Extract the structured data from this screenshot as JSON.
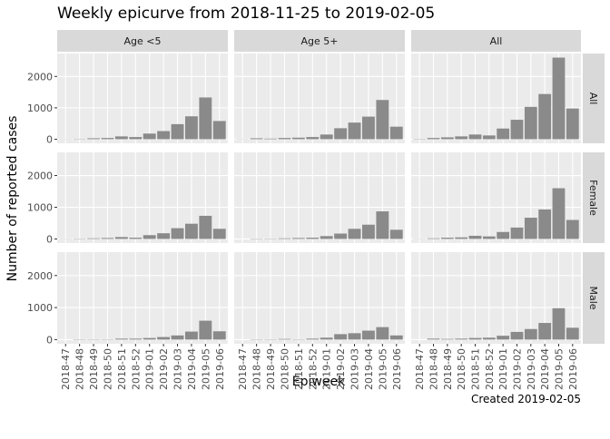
{
  "chart_data": {
    "type": "bar",
    "title": "Weekly epicurve from 2018-11-25 to 2019-02-05",
    "xlabel": "Epiweek",
    "ylabel": "Number of reported cases",
    "caption": "Created 2019-02-05",
    "categories": [
      "2018-47",
      "2018-48",
      "2018-49",
      "2018-50",
      "2018-51",
      "2018-52",
      "2019-01",
      "2019-02",
      "2019-03",
      "2019-04",
      "2019-05",
      "2019-06"
    ],
    "col_labels": [
      "Age <5",
      "Age 5+",
      "All"
    ],
    "row_labels": [
      "All",
      "Female",
      "Male"
    ],
    "color": "#8a8a8a",
    "ylim": [
      -130,
      2730
    ],
    "yticks": [
      0,
      1000,
      2000
    ],
    "grid": true,
    "panels": [
      [
        [
          5,
          10,
          30,
          40,
          90,
          70,
          180,
          260,
          480,
          730,
          1330,
          580
        ],
        [
          5,
          30,
          20,
          40,
          50,
          70,
          150,
          350,
          530,
          720,
          1250,
          400
        ],
        [
          10,
          40,
          60,
          90,
          150,
          120,
          340,
          620,
          1030,
          1440,
          2600,
          980
        ]
      ],
      [
        [
          5,
          10,
          20,
          30,
          60,
          40,
          120,
          180,
          340,
          480,
          730,
          320
        ],
        [
          0,
          10,
          10,
          20,
          30,
          40,
          90,
          170,
          320,
          450,
          870,
          290
        ],
        [
          5,
          20,
          40,
          50,
          100,
          80,
          220,
          360,
          670,
          930,
          1600,
          600
        ]
      ],
      [
        [
          0,
          10,
          10,
          10,
          30,
          30,
          50,
          80,
          130,
          250,
          590,
          260
        ],
        [
          0,
          10,
          10,
          20,
          10,
          30,
          60,
          170,
          200,
          280,
          390,
          130
        ],
        [
          0,
          30,
          20,
          30,
          50,
          60,
          120,
          240,
          330,
          520,
          980,
          370
        ]
      ]
    ]
  }
}
